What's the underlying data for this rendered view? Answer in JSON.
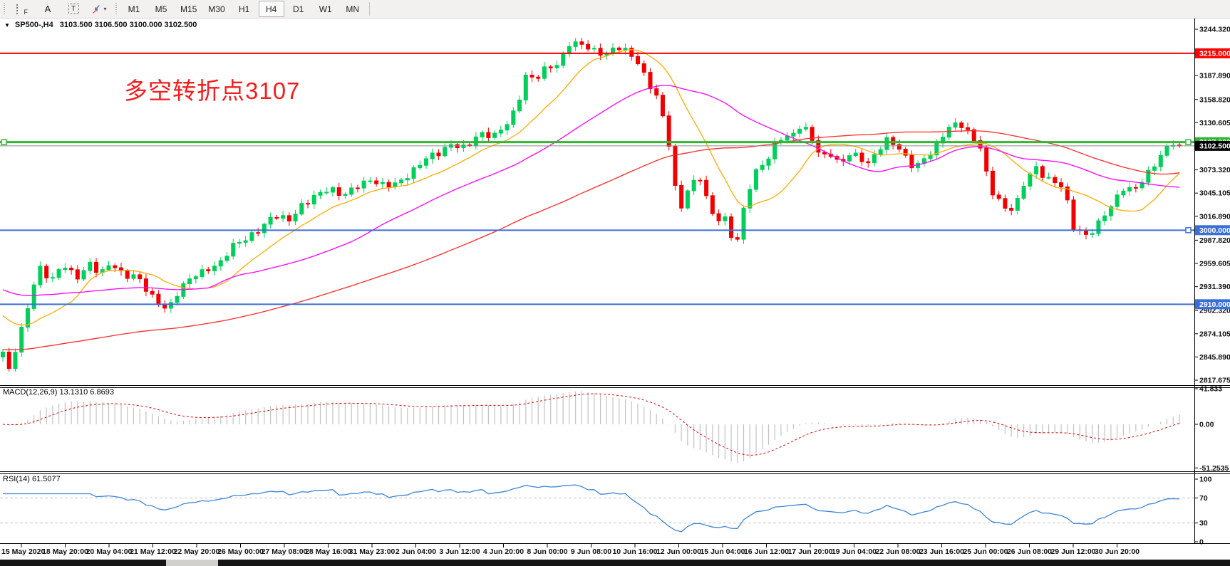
{
  "toolbar": {
    "tools": {
      "f_label": "F",
      "a_label": "A",
      "t_label": "T"
    },
    "timeframes": [
      "M1",
      "M5",
      "M15",
      "M30",
      "H1",
      "H4",
      "D1",
      "W1",
      "MN"
    ],
    "active_timeframe": "H4"
  },
  "chart": {
    "symbol_period": "SP500-,H4",
    "ohlc_text": "3103.500 3106.500 3100.000 3102.500",
    "annotation": "多空转折点3107",
    "annotation_color": "#f51d1d"
  },
  "chart_data": [
    {
      "type": "candlestick",
      "symbol": "SP500-",
      "timeframe": "H4",
      "title": "SP500-,H4",
      "last_ohlc": {
        "open": 3103.5,
        "high": 3106.5,
        "low": 3100.0,
        "close": 3102.5
      },
      "ylim": [
        2817.675,
        3244.32
      ],
      "y_axis_ticks": [
        "3244.320",
        "3187.890",
        "3158.820",
        "3130.605",
        "3073.320",
        "3045.105",
        "3016.890",
        "2987.820",
        "2959.605",
        "2931.390",
        "2902.320",
        "2874.105",
        "2845.890",
        "2817.675"
      ],
      "bull_color": "#00d05a",
      "bear_color": "#f20000",
      "horizontal_levels": [
        {
          "value": 3215.0,
          "badge": "3215.000",
          "color": "#ff0000",
          "width": 2,
          "handles": "none",
          "role": "resistance-line"
        },
        {
          "value": 3107.0,
          "badge": "3107.000",
          "color": "#2eb82e",
          "width": 3,
          "handles": "both",
          "role": "pivot-line"
        },
        {
          "value": 3102.5,
          "badge": "3102.500",
          "color": "#8a8a8a",
          "width": 1,
          "handles": "none",
          "role": "last-price-line",
          "badge_bg": "#000000"
        },
        {
          "value": 3000.0,
          "badge": "3000.000",
          "color": "#3a6fd8",
          "width": 2,
          "handles": "right",
          "role": "support-line"
        },
        {
          "value": 2910.0,
          "badge": "2910.000",
          "color": "#3a6fd8",
          "width": 2,
          "handles": "none",
          "role": "support-line"
        }
      ],
      "moving_averages": [
        {
          "name": "fast",
          "color": "#ffaa00",
          "period": 12,
          "prior": 2900
        },
        {
          "name": "mid",
          "color": "#ff00ff",
          "period": 34,
          "prior": 2930
        },
        {
          "name": "slow",
          "color": "#ff2a2a",
          "period": 80,
          "prior": 2855
        }
      ],
      "candles": 190,
      "close_path_anchors": [
        [
          0,
          2850
        ],
        [
          0.005,
          2826
        ],
        [
          0.02,
          2900
        ],
        [
          0.03,
          2958
        ],
        [
          0.041,
          2938
        ],
        [
          0.052,
          2956
        ],
        [
          0.063,
          2942
        ],
        [
          0.073,
          2962
        ],
        [
          0.083,
          2948
        ],
        [
          0.093,
          2958
        ],
        [
          0.103,
          2942
        ],
        [
          0.113,
          2948
        ],
        [
          0.123,
          2928
        ],
        [
          0.133,
          2908
        ],
        [
          0.141,
          2902
        ],
        [
          0.152,
          2932
        ],
        [
          0.163,
          2948
        ],
        [
          0.174,
          2952
        ],
        [
          0.185,
          2958
        ],
        [
          0.196,
          2982
        ],
        [
          0.207,
          2992
        ],
        [
          0.219,
          3002
        ],
        [
          0.231,
          3016
        ],
        [
          0.243,
          3012
        ],
        [
          0.254,
          3032
        ],
        [
          0.266,
          3042
        ],
        [
          0.278,
          3048
        ],
        [
          0.289,
          3042
        ],
        [
          0.3,
          3056
        ],
        [
          0.312,
          3060
        ],
        [
          0.324,
          3052
        ],
        [
          0.336,
          3058
        ],
        [
          0.347,
          3072
        ],
        [
          0.359,
          3086
        ],
        [
          0.371,
          3092
        ],
        [
          0.382,
          3106
        ],
        [
          0.393,
          3102
        ],
        [
          0.405,
          3116
        ],
        [
          0.417,
          3112
        ],
        [
          0.429,
          3132
        ],
        [
          0.437,
          3152
        ],
        [
          0.444,
          3188
        ],
        [
          0.453,
          3182
        ],
        [
          0.462,
          3196
        ],
        [
          0.472,
          3202
        ],
        [
          0.482,
          3230
        ],
        [
          0.492,
          3226
        ],
        [
          0.502,
          3216
        ],
        [
          0.512,
          3212
        ],
        [
          0.522,
          3226
        ],
        [
          0.532,
          3218
        ],
        [
          0.54,
          3202
        ],
        [
          0.548,
          3178
        ],
        [
          0.557,
          3158
        ],
        [
          0.565,
          3118
        ],
        [
          0.57,
          3066
        ],
        [
          0.575,
          3022
        ],
        [
          0.579,
          3042
        ],
        [
          0.586,
          3056
        ],
        [
          0.593,
          3062
        ],
        [
          0.599,
          3032
        ],
        [
          0.606,
          3012
        ],
        [
          0.613,
          3018
        ],
        [
          0.619,
          2996
        ],
        [
          0.625,
          2988
        ],
        [
          0.631,
          3036
        ],
        [
          0.639,
          3066
        ],
        [
          0.647,
          3082
        ],
        [
          0.654,
          3092
        ],
        [
          0.658,
          3118
        ],
        [
          0.664,
          3112
        ],
        [
          0.672,
          3118
        ],
        [
          0.679,
          3126
        ],
        [
          0.687,
          3112
        ],
        [
          0.695,
          3088
        ],
        [
          0.703,
          3096
        ],
        [
          0.711,
          3082
        ],
        [
          0.719,
          3092
        ],
        [
          0.727,
          3088
        ],
        [
          0.735,
          3078
        ],
        [
          0.743,
          3096
        ],
        [
          0.751,
          3112
        ],
        [
          0.759,
          3106
        ],
        [
          0.767,
          3088
        ],
        [
          0.775,
          3072
        ],
        [
          0.783,
          3086
        ],
        [
          0.791,
          3098
        ],
        [
          0.799,
          3118
        ],
        [
          0.807,
          3130
        ],
        [
          0.815,
          3126
        ],
        [
          0.823,
          3112
        ],
        [
          0.831,
          3100
        ],
        [
          0.839,
          3052
        ],
        [
          0.847,
          3038
        ],
        [
          0.854,
          3022
        ],
        [
          0.862,
          3032
        ],
        [
          0.87,
          3062
        ],
        [
          0.878,
          3076
        ],
        [
          0.886,
          3066
        ],
        [
          0.894,
          3060
        ],
        [
          0.902,
          3052
        ],
        [
          0.909,
          3002
        ],
        [
          0.916,
          2996
        ],
        [
          0.922,
          2992
        ],
        [
          0.929,
          3006
        ],
        [
          0.937,
          3022
        ],
        [
          0.945,
          3036
        ],
        [
          0.953,
          3050
        ],
        [
          0.961,
          3046
        ],
        [
          0.969,
          3062
        ],
        [
          0.977,
          3078
        ],
        [
          0.985,
          3094
        ],
        [
          0.993,
          3106
        ],
        [
          1,
          3102.5
        ]
      ],
      "x_labels": [
        "15 May 2020",
        "18 May 20:00",
        "20 May 04:00",
        "21 May 12:00",
        "22 May 20:00",
        "26 May 00:00",
        "27 May 08:00",
        "28 May 16:00",
        "31 May 23:00",
        "2 Jun 04:00",
        "3 Jun 12:00",
        "4 Jun 20:00",
        "8 Jun 00:00",
        "9 Jun 08:00",
        "10 Jun 16:00",
        "12 Jun 00:00",
        "15 Jun 04:00",
        "16 Jun 12:00",
        "17 Jun 20:00",
        "19 Jun 04:00",
        "22 Jun 08:00",
        "23 Jun 16:00",
        "25 Jun 00:00",
        "26 Jun 08:00",
        "29 Jun 12:00",
        "30 Jun 20:00"
      ]
    },
    {
      "type": "macd",
      "label": "MACD(12,26,9)",
      "values_text": "13.1310 6.8693",
      "label_full": "MACD(12,26,9) 13.1310 6.8693",
      "macd_value": 13.131,
      "signal_value": 6.8693,
      "params": {
        "fast": 12,
        "slow": 26,
        "signal": 9
      },
      "ylim": [
        -51.2535,
        41.833
      ],
      "axis_ticks": [
        "41.833",
        "0.00",
        "-51.2535"
      ],
      "histogram_color": "#c2c2c2",
      "signal_color": "#e00000"
    },
    {
      "type": "rsi",
      "label": "RSI(14)",
      "value_text": "61.5077",
      "label_full": "RSI(14) 61.5077",
      "value": 61.5077,
      "period": 14,
      "ylim": [
        0,
        100
      ],
      "axis_ticks": [
        "100",
        "70",
        "30",
        "0"
      ],
      "overbought": 70,
      "oversold": 30,
      "line_color": "#3d85d8",
      "level_color": "#c4c4c4"
    }
  ]
}
